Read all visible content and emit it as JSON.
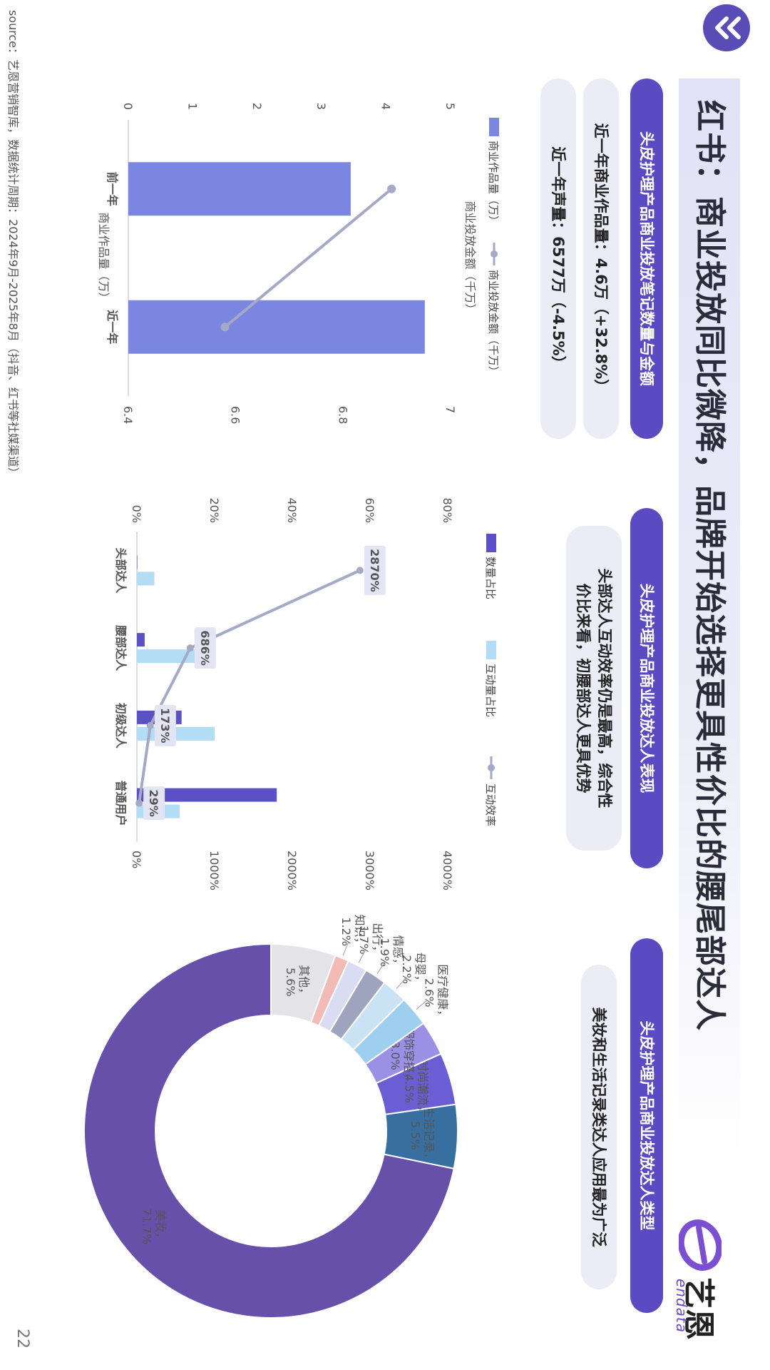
{
  "title": "红书：商业投放同比微降，品牌开始选择更具性价比的腰尾部达人",
  "logo": {
    "cn": "艺恩",
    "en": "endata"
  },
  "sections": {
    "left": {
      "header": "头皮护理产品商业投放笔记数量与金额",
      "stat1": "近一年商业作品量：4.6万（+32.8%）",
      "stat2": "近一年声量：6577万（-4.5%）"
    },
    "middle": {
      "header": "头皮护理产品商业投放达人表现",
      "note_line1": "头部达人互动效率仍是最高，综合性",
      "note_line2": "价比来看，初腰部达人更具优势"
    },
    "right": {
      "header": "头皮护理产品商业投放达人类型",
      "note": "美妆和生活记录类达人应用最为广泛"
    }
  },
  "source": "source：艺恩营销智库，数据统计周期：2024年9月-2025年8月（抖音、红书等社媒渠道）",
  "page_number": "22",
  "chart_data": [
    {
      "type": "bar",
      "categories": [
        "前一年",
        "近一年"
      ],
      "series": [
        {
          "name": "商业作品量（万）",
          "kind": "bar",
          "axis": "left",
          "values": [
            3.45,
            4.6
          ],
          "color": "#7b86e0"
        },
        {
          "name": "商业投放金额（千万）",
          "kind": "line",
          "axis": "right",
          "values": [
            6.89,
            6.58
          ],
          "color": "#a4a9c6"
        }
      ],
      "ylabel": "商业作品量（万）",
      "y2label": "商业投放金额（千万）",
      "ylim": [
        0,
        5
      ],
      "y2lim": [
        6.4,
        7
      ],
      "yticks": [
        "0",
        "1",
        "2",
        "3",
        "4",
        "5"
      ],
      "y2ticks": [
        "6.4",
        "6.6",
        "6.8",
        "7"
      ]
    },
    {
      "type": "bar",
      "categories": [
        "头部达人",
        "腰部达人",
        "初级达人",
        "普通用户"
      ],
      "series": [
        {
          "name": "数量占比",
          "kind": "bar",
          "axis": "left",
          "values": [
            0.1,
            2,
            11.5,
            36
          ],
          "color": "#5b50c4"
        },
        {
          "name": "互动量占比",
          "kind": "bar",
          "axis": "left",
          "values": [
            4.5,
            15,
            20,
            11
          ],
          "color": "#b3ddf5"
        },
        {
          "name": "互动效率",
          "kind": "line",
          "axis": "right",
          "values": [
            2870,
            686,
            173,
            29
          ],
          "labels": [
            "2870%",
            "686%",
            "173%",
            "29%"
          ],
          "color": "#a4a9c6"
        }
      ],
      "ylim": [
        0,
        80
      ],
      "y2lim": [
        0,
        4000
      ],
      "yticks": [
        "0%",
        "20%",
        "40%",
        "60%",
        "80%"
      ],
      "y2ticks": [
        "0%",
        "1000%",
        "2000%",
        "3000%",
        "4000%"
      ]
    },
    {
      "type": "pie",
      "donut": true,
      "slices": [
        {
          "label": "美妆",
          "value": 71.7,
          "text": "71.7%",
          "color": "#6750a9"
        },
        {
          "label": "生活记录",
          "value": 5.5,
          "text": "5.5%",
          "color": "#3770a0"
        },
        {
          "label": "时尚潮流",
          "value": 4.5,
          "text": "4.5%",
          "color": "#6b5dd3"
        },
        {
          "label": "服饰穿搭",
          "value": 3.0,
          "text": "3.0%",
          "color": "#9c8fe6"
        },
        {
          "label": "医疗健康",
          "value": 2.6,
          "text": "2.6%",
          "color": "#9ecfef"
        },
        {
          "label": "母婴",
          "value": 2.2,
          "text": "2.2%",
          "color": "#c9e2f4"
        },
        {
          "label": "情感",
          "value": 1.9,
          "text": "1.9%",
          "color": "#9ea4bd"
        },
        {
          "label": "出行",
          "value": 1.7,
          "text": "1.7%",
          "color": "#dadcf1"
        },
        {
          "label": "知识",
          "value": 1.2,
          "text": "1.2%",
          "color": "#f3b9b5"
        },
        {
          "label": "其他",
          "value": 5.6,
          "text": "5.6%",
          "color": "#e4e4e8"
        }
      ]
    }
  ]
}
